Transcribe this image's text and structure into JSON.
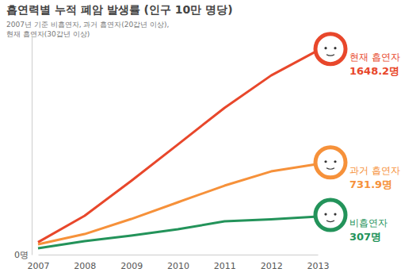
{
  "chart_data": {
    "type": "line",
    "title": "흡연력별 누적 폐암 발생률 (인구 10만 명당)",
    "subtitle": [
      "2007년 기준 비흡연자, 과거 흡연자(20갑년 이상),",
      "현재 흡연자(30갑년 이상)"
    ],
    "x": [
      2007,
      2008,
      2009,
      2010,
      2011,
      2012,
      2013
    ],
    "xlim": [
      2007,
      2013
    ],
    "xticks": [
      2007,
      2008,
      2009,
      2010,
      2011,
      2012,
      2013
    ],
    "ylim": [
      0,
      1800
    ],
    "yticks": [
      {
        "value": 0,
        "label": "0명"
      }
    ],
    "grid": false,
    "data_labels": true,
    "series": [
      {
        "name": "현재 흡연자",
        "color": "#e8472b",
        "values": [
          100,
          314,
          596,
          890,
          1185,
          1447,
          1648.2
        ],
        "value_labels": [
          null,
          null,
          null,
          null,
          null,
          null,
          "1648.2명"
        ]
      },
      {
        "name": "과거 흡연자",
        "color": "#f6913a",
        "values": [
          83,
          166,
          288,
          423,
          557,
          672,
          731.9
        ],
        "value_labels": [
          null,
          null,
          null,
          null,
          null,
          null,
          "731.9명"
        ]
      },
      {
        "name": "비흡연자",
        "color": "#23935a",
        "values": [
          51,
          109,
          154,
          205,
          269,
          285,
          307
        ],
        "value_labels": [
          null,
          null,
          null,
          null,
          null,
          null,
          "307명"
        ]
      }
    ]
  }
}
